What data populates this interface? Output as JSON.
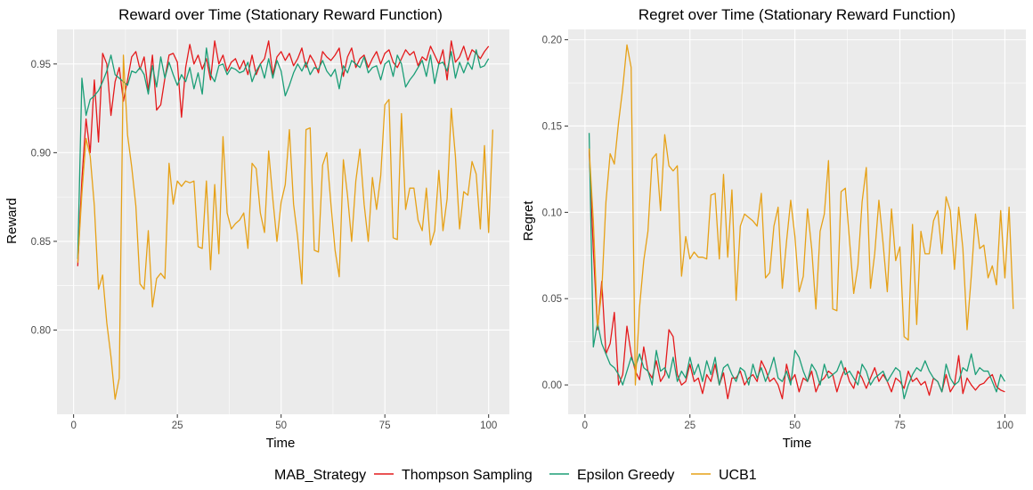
{
  "chart_data": [
    {
      "type": "line",
      "title": "Reward over Time (Stationary Reward Function)",
      "xlabel": "Time",
      "ylabel": "Reward",
      "xlim": [
        -4,
        105
      ],
      "ylim": [
        0.7525,
        0.9695
      ],
      "xticks": [
        0,
        25,
        50,
        75,
        100
      ],
      "xtick_labels": [
        "0",
        "25",
        "50",
        "75",
        "100"
      ],
      "yticks": [
        0.8,
        0.85,
        0.9,
        0.95
      ],
      "ytick_labels": [
        "0.80",
        "0.85",
        "0.90",
        "0.95"
      ],
      "grid": true,
      "series": [
        {
          "name": "Thompson Sampling",
          "color": "#e41a1c",
          "values": [
            0.836,
            0.885,
            0.919,
            0.9,
            0.941,
            0.906,
            0.956,
            0.95,
            0.921,
            0.94,
            0.948,
            0.929,
            0.941,
            0.954,
            0.957,
            0.947,
            0.954,
            0.935,
            0.955,
            0.924,
            0.927,
            0.942,
            0.955,
            0.956,
            0.951,
            0.92,
            0.948,
            0.961,
            0.95,
            0.955,
            0.947,
            0.953,
            0.941,
            0.963,
            0.95,
            0.955,
            0.946,
            0.951,
            0.953,
            0.947,
            0.952,
            0.944,
            0.955,
            0.944,
            0.95,
            0.953,
            0.963,
            0.944,
            0.954,
            0.957,
            0.952,
            0.956,
            0.949,
            0.953,
            0.959,
            0.948,
            0.955,
            0.951,
            0.945,
            0.957,
            0.954,
            0.952,
            0.955,
            0.959,
            0.943,
            0.954,
            0.959,
            0.948,
            0.953,
            0.955,
            0.948,
            0.953,
            0.957,
            0.95,
            0.956,
            0.958,
            0.951,
            0.948,
            0.953,
            0.958,
            0.955,
            0.957,
            0.949,
            0.954,
            0.952,
            0.96,
            0.955,
            0.95,
            0.958,
            0.941,
            0.963,
            0.951,
            0.954,
            0.96,
            0.952,
            0.958,
            0.956,
            0.953,
            0.957,
            0.96
          ]
        },
        {
          "name": "Epsilon Greedy",
          "color": "#1b9e77",
          "values": [
            0.84,
            0.942,
            0.921,
            0.93,
            0.932,
            0.935,
            0.94,
            0.946,
            0.955,
            0.944,
            0.942,
            0.94,
            0.938,
            0.946,
            0.945,
            0.948,
            0.944,
            0.933,
            0.949,
            0.937,
            0.954,
            0.942,
            0.951,
            0.944,
            0.938,
            0.944,
            0.94,
            0.948,
            0.936,
            0.945,
            0.933,
            0.959,
            0.944,
            0.94,
            0.949,
            0.95,
            0.944,
            0.948,
            0.947,
            0.945,
            0.946,
            0.951,
            0.94,
            0.946,
            0.95,
            0.942,
            0.953,
            0.942,
            0.952,
            0.946,
            0.932,
            0.938,
            0.945,
            0.95,
            0.946,
            0.951,
            0.944,
            0.948,
            0.947,
            0.952,
            0.946,
            0.943,
            0.947,
            0.936,
            0.949,
            0.945,
            0.952,
            0.95,
            0.948,
            0.954,
            0.945,
            0.948,
            0.949,
            0.941,
            0.95,
            0.952,
            0.943,
            0.955,
            0.95,
            0.937,
            0.941,
            0.944,
            0.948,
            0.952,
            0.943,
            0.955,
            0.939,
            0.95,
            0.951,
            0.946,
            0.957,
            0.942,
            0.951,
            0.945,
            0.951,
            0.947,
            0.958,
            0.948,
            0.949,
            0.953
          ]
        },
        {
          "name": "UCB1",
          "color": "#e6a117",
          "values": [
            0.838,
            0.877,
            0.908,
            0.898,
            0.87,
            0.823,
            0.831,
            0.804,
            0.785,
            0.761,
            0.773,
            0.955,
            0.91,
            0.892,
            0.87,
            0.826,
            0.823,
            0.856,
            0.813,
            0.829,
            0.832,
            0.829,
            0.894,
            0.871,
            0.884,
            0.881,
            0.884,
            0.883,
            0.884,
            0.847,
            0.846,
            0.884,
            0.834,
            0.882,
            0.843,
            0.909,
            0.866,
            0.857,
            0.86,
            0.862,
            0.866,
            0.846,
            0.894,
            0.891,
            0.866,
            0.855,
            0.901,
            0.874,
            0.85,
            0.872,
            0.882,
            0.913,
            0.871,
            0.852,
            0.826,
            0.913,
            0.914,
            0.845,
            0.844,
            0.893,
            0.9,
            0.871,
            0.845,
            0.83,
            0.896,
            0.876,
            0.85,
            0.884,
            0.902,
            0.871,
            0.85,
            0.886,
            0.868,
            0.887,
            0.927,
            0.93,
            0.852,
            0.851,
            0.922,
            0.868,
            0.88,
            0.88,
            0.862,
            0.856,
            0.88,
            0.848,
            0.856,
            0.89,
            0.856,
            0.874,
            0.925,
            0.898,
            0.857,
            0.878,
            0.876,
            0.895,
            0.888,
            0.857,
            0.904,
            0.855,
            0.913
          ]
        }
      ]
    },
    {
      "type": "line",
      "title": "Regret over Time (Stationary Reward Function)",
      "xlabel": "Time",
      "ylabel": "Regret",
      "xlim": [
        -4,
        105
      ],
      "ylim": [
        -0.017,
        0.206
      ],
      "xticks": [
        0,
        25,
        50,
        75,
        100
      ],
      "xtick_labels": [
        "0",
        "25",
        "50",
        "75",
        "100"
      ],
      "yticks": [
        0.0,
        0.05,
        0.1,
        0.15,
        0.2
      ],
      "ytick_labels": [
        "0.00",
        "0.05",
        "0.10",
        "0.15",
        "0.20"
      ],
      "grid": true,
      "series": [
        {
          "name": "Thompson Sampling",
          "color": "#e41a1c",
          "values": [
            0.136,
            0.078,
            0.032,
            0.06,
            0.018,
            0.024,
            0.042,
            0.0,
            0.006,
            0.034,
            0.018,
            0.008,
            0.003,
            0.022,
            0.008,
            0.004,
            0.014,
            0.002,
            0.006,
            0.032,
            0.028,
            0.006,
            0.0,
            0.002,
            0.012,
            0.002,
            0.004,
            -0.005,
            0.006,
            0.002,
            0.012,
            0.0,
            0.007,
            -0.008,
            0.004,
            0.004,
            0.008,
            0.0,
            0.004,
            0.006,
            0.002,
            0.014,
            0.009,
            0.002,
            0.004,
            0.0,
            -0.008,
            0.012,
            0.002,
            0.006,
            -0.004,
            0.004,
            0.002,
            0.008,
            -0.004,
            0.002,
            0.004,
            0.008,
            0.006,
            -0.004,
            0.004,
            0.01,
            0.002,
            -0.002,
            0.008,
            0.004,
            -0.002,
            0.004,
            0.01,
            0.002,
            0.006,
            0.002,
            -0.004,
            0.004,
            0.002,
            -0.002,
            0.008,
            0.002,
            0.004,
            0.0,
            0.002,
            -0.006,
            0.004,
            0.002,
            -0.004,
            0.006,
            -0.004,
            0.0,
            0.017,
            -0.005,
            0.004,
            0.0,
            -0.003,
            0.0,
            0.001,
            0.004,
            0.006,
            -0.001,
            -0.003,
            -0.004
          ]
        },
        {
          "name": "Epsilon Greedy",
          "color": "#1b9e77",
          "values": [
            0.146,
            0.022,
            0.036,
            0.024,
            0.018,
            0.012,
            0.01,
            0.006,
            0.0,
            0.008,
            0.016,
            0.01,
            0.018,
            0.01,
            0.008,
            0.0,
            0.02,
            0.008,
            0.01,
            0.004,
            0.016,
            0.002,
            0.008,
            0.004,
            0.016,
            0.006,
            0.012,
            0.002,
            0.014,
            0.006,
            0.016,
            0.0,
            0.01,
            0.012,
            0.006,
            0.002,
            0.01,
            0.008,
            0.0,
            0.012,
            0.004,
            0.01,
            0.002,
            0.008,
            0.016,
            0.004,
            0.002,
            0.008,
            0.0,
            0.02,
            0.016,
            0.008,
            0.002,
            0.012,
            0.008,
            0.0,
            0.012,
            0.004,
            0.006,
            0.008,
            0.014,
            0.006,
            0.008,
            0.004,
            0.0,
            0.012,
            0.008,
            0.0,
            0.004,
            0.006,
            0.008,
            0.002,
            0.006,
            0.01,
            0.008,
            -0.008,
            0.0,
            0.006,
            0.01,
            0.008,
            0.014,
            0.008,
            0.004,
            0.002,
            -0.004,
            0.012,
            0.004,
            0.0,
            0.002,
            0.01,
            0.008,
            0.018,
            0.006,
            0.01,
            0.008,
            0.008,
            0.002,
            -0.004,
            0.006,
            0.002
          ]
        },
        {
          "name": "UCB1",
          "color": "#e6a117",
          "values": [
            0.137,
            0.095,
            0.034,
            0.054,
            0.106,
            0.134,
            0.128,
            0.152,
            0.172,
            0.197,
            0.184,
            0.0,
            0.045,
            0.072,
            0.089,
            0.131,
            0.134,
            0.101,
            0.145,
            0.127,
            0.124,
            0.127,
            0.063,
            0.086,
            0.073,
            0.077,
            0.074,
            0.074,
            0.073,
            0.11,
            0.111,
            0.073,
            0.122,
            0.074,
            0.113,
            0.049,
            0.092,
            0.099,
            0.097,
            0.095,
            0.092,
            0.111,
            0.062,
            0.065,
            0.092,
            0.103,
            0.056,
            0.083,
            0.107,
            0.086,
            0.054,
            0.063,
            0.102,
            0.079,
            0.044,
            0.089,
            0.099,
            0.13,
            0.044,
            0.043,
            0.112,
            0.114,
            0.084,
            0.053,
            0.069,
            0.106,
            0.126,
            0.056,
            0.076,
            0.107,
            0.082,
            0.054,
            0.102,
            0.072,
            0.08,
            0.028,
            0.026,
            0.093,
            0.035,
            0.089,
            0.076,
            0.076,
            0.095,
            0.101,
            0.076,
            0.109,
            0.101,
            0.067,
            0.103,
            0.079,
            0.032,
            0.063,
            0.099,
            0.079,
            0.081,
            0.062,
            0.069,
            0.058,
            0.101,
            0.062,
            0.103,
            0.044
          ]
        }
      ]
    }
  ],
  "legend": {
    "title": "MAB_Strategy",
    "entries": [
      {
        "label": "Thompson Sampling",
        "color": "#e41a1c"
      },
      {
        "label": "Epsilon Greedy",
        "color": "#1b9e77"
      },
      {
        "label": "UCB1",
        "color": "#e6a117"
      }
    ]
  }
}
